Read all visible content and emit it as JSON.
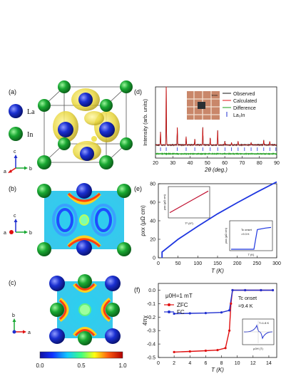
{
  "panels": {
    "a": {
      "label": "(a)",
      "legend": [
        {
          "name": "La",
          "color": "#1a2fd0"
        },
        {
          "name": "In",
          "color": "#19a832"
        }
      ],
      "axes": {
        "c": "c",
        "a": "a",
        "b": "b"
      }
    },
    "b": {
      "label": "(b)",
      "axes": {
        "c": "c",
        "a": "a",
        "b": "b"
      }
    },
    "c": {
      "label": "(c)",
      "axes": {
        "b": "b",
        "a": "a"
      }
    },
    "colorbar": {
      "ticks": [
        "0.0",
        "0.5",
        "1.0"
      ]
    },
    "d": {
      "label": "(d)"
    },
    "e": {
      "label": "(e)"
    },
    "f": {
      "label": "(f)"
    }
  },
  "chart_data": [
    {
      "id": "d",
      "type": "line",
      "xlabel": "2θ (deg.)",
      "ylabel": "Intensity (arb. units)",
      "xlim": [
        20,
        90
      ],
      "xticks": [
        "20",
        "30",
        "40",
        "50",
        "60",
        "70",
        "80",
        "90"
      ],
      "legend": [
        "Observed",
        "Calculated",
        "Difference",
        "La₃In"
      ],
      "inset_label": "1mm",
      "colors": {
        "observed": "#111111",
        "calculated": "#e01010",
        "difference": "#1a9c1a",
        "bragg": "#2030d0"
      },
      "peaks": [
        {
          "x": 22.9,
          "y": 0.22
        },
        {
          "x": 26.2,
          "y": 1.0
        },
        {
          "x": 32.6,
          "y": 0.3
        },
        {
          "x": 37.7,
          "y": 0.14
        },
        {
          "x": 42.7,
          "y": 0.1
        },
        {
          "x": 47.3,
          "y": 0.3
        },
        {
          "x": 51.6,
          "y": 0.12
        },
        {
          "x": 55.9,
          "y": 0.25
        },
        {
          "x": 60.1,
          "y": 0.06
        },
        {
          "x": 63.9,
          "y": 0.04
        },
        {
          "x": 67.7,
          "y": 0.06
        },
        {
          "x": 75.2,
          "y": 0.04
        },
        {
          "x": 82.5,
          "y": 0.08
        },
        {
          "x": 86.0,
          "y": 0.06
        }
      ],
      "bragg_positions": [
        22.9,
        26.2,
        32.6,
        37.7,
        42.7,
        47.3,
        51.6,
        55.9,
        60.1,
        63.9,
        67.7,
        71.4,
        75.2,
        78.8,
        82.5,
        86.0,
        89.5
      ]
    },
    {
      "id": "e",
      "type": "line",
      "xlabel": "T (K)",
      "ylabel": "ρxx (μΩ cm)",
      "xlim": [
        0,
        300
      ],
      "ylim": [
        0,
        80
      ],
      "xticks": [
        "0",
        "50",
        "100",
        "150",
        "200",
        "250",
        "300"
      ],
      "yticks": [
        "0",
        "20",
        "40",
        "60",
        "80"
      ],
      "series": [
        {
          "points": [
            [
              9.4,
              6.2
            ],
            [
              50,
              20
            ],
            [
              100,
              34
            ],
            [
              150,
              47.5
            ],
            [
              200,
              59.5
            ],
            [
              250,
              71
            ],
            [
              300,
              82
            ]
          ]
        }
      ],
      "inset_left": {
        "xlabel": "T² (K²)",
        "ylabel": "ρxx (μΩ cm)",
        "points": [
          [
            0,
            6.5
          ],
          [
            50,
            11
          ],
          [
            100,
            15.5
          ],
          [
            150,
            20
          ]
        ]
      },
      "inset_right": {
        "xlabel": "T (K)",
        "ylabel": "ρxx (μΩ cm)",
        "annotation_label": "Tc onset",
        "annotation_value": "=9.3 K",
        "points": [
          [
            7,
            0
          ],
          [
            9.0,
            0
          ],
          [
            9.3,
            6.5
          ],
          [
            10,
            7
          ],
          [
            10.5,
            7.2
          ]
        ]
      }
    },
    {
      "id": "f",
      "type": "line",
      "xlabel": "T (K)",
      "ylabel": "4πχ",
      "xlim": [
        0,
        15
      ],
      "ylim": [
        -0.5,
        0.05
      ],
      "xticks": [
        "0",
        "2",
        "4",
        "6",
        "8",
        "10",
        "12",
        "14"
      ],
      "yticks": [
        "0.0",
        "-0.1",
        "-0.2",
        "-0.3",
        "-0.4",
        "-0.5"
      ],
      "field_label": "μ0H=1 mT",
      "tc_label": "Tc onset",
      "tc_value": "=9.4 K",
      "inset_label": "T=1.8 K",
      "inset_xlabel": "μ0H (T)",
      "series": [
        {
          "name": "ZFC",
          "color": "#e01010",
          "points": [
            [
              2,
              -0.46
            ],
            [
              4,
              -0.455
            ],
            [
              6,
              -0.45
            ],
            [
              7.5,
              -0.445
            ],
            [
              8.5,
              -0.43
            ],
            [
              9.0,
              -0.3
            ],
            [
              9.2,
              -0.1
            ],
            [
              9.4,
              0.0
            ],
            [
              11,
              0.0
            ],
            [
              13,
              0.0
            ],
            [
              14.5,
              0.0
            ]
          ]
        },
        {
          "name": "FC",
          "color": "#2030d0",
          "points": [
            [
              2,
              -0.175
            ],
            [
              4,
              -0.172
            ],
            [
              6,
              -0.17
            ],
            [
              8,
              -0.165
            ],
            [
              9.0,
              -0.15
            ],
            [
              9.4,
              0.0
            ],
            [
              11,
              0.0
            ],
            [
              13,
              0.0
            ],
            [
              14.5,
              0.0
            ]
          ]
        }
      ]
    }
  ]
}
